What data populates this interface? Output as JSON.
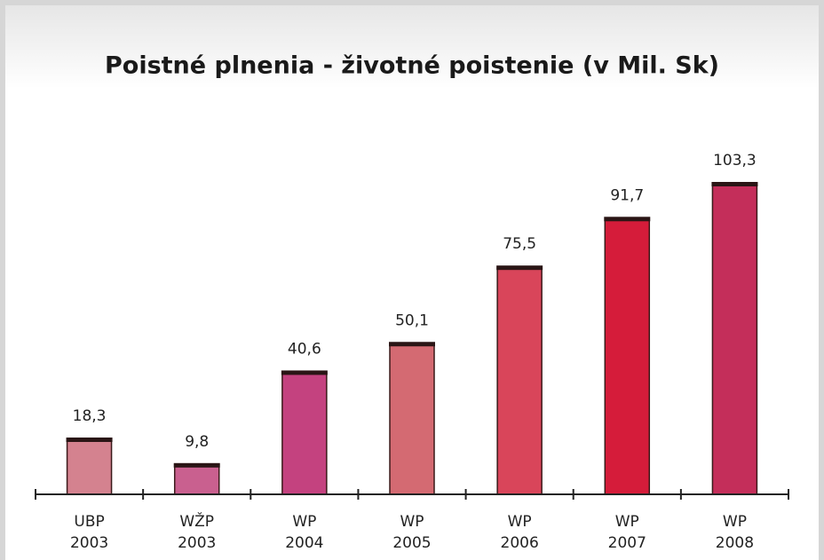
{
  "chart_data": {
    "type": "bar",
    "title": "Poistné plnenia - životné poistenie (v Mil. Sk)",
    "categories": [
      [
        "UBP",
        "2003"
      ],
      [
        "WŽP",
        "2003"
      ],
      [
        "WP",
        "2004"
      ],
      [
        "WP",
        "2005"
      ],
      [
        "WP",
        "2006"
      ],
      [
        "WP",
        "2007"
      ],
      [
        "WP",
        "2008"
      ]
    ],
    "values": [
      18.3,
      9.8,
      40.6,
      50.1,
      75.5,
      91.7,
      103.3
    ],
    "value_labels": [
      "18,3",
      "9,8",
      "40,6",
      "50,1",
      "75,5",
      "91,7",
      "103,3"
    ],
    "colors": [
      "#d4828f",
      "#c9608f",
      "#c4427f",
      "#d46a72",
      "#d9455a",
      "#d51c3a",
      "#c42e5a"
    ]
  }
}
